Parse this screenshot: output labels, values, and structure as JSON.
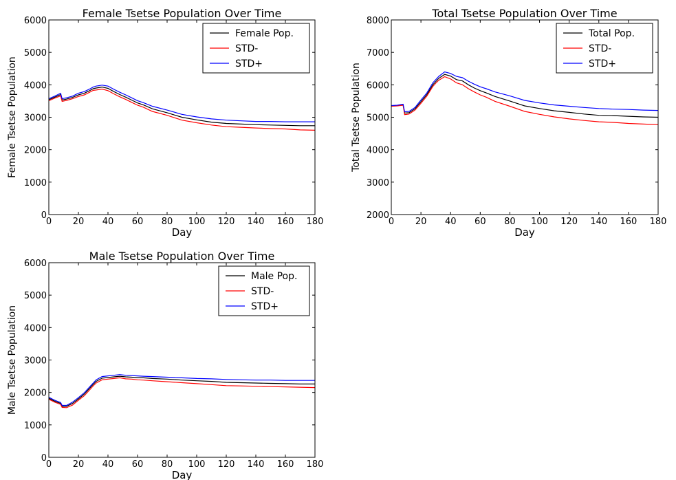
{
  "chart_data": [
    {
      "type": "line",
      "title": "Female Tsetse Population Over Time",
      "xlabel": "Day",
      "ylabel": "Female Tsetse Population",
      "xlim": [
        0,
        180
      ],
      "ylim": [
        0,
        6000
      ],
      "xticks": [
        0,
        20,
        40,
        60,
        80,
        100,
        120,
        140,
        160,
        180
      ],
      "yticks": [
        0,
        1000,
        2000,
        3000,
        4000,
        5000,
        6000
      ],
      "legend": "top-right",
      "grid": false,
      "x": [
        0,
        4,
        8,
        9,
        12,
        16,
        20,
        24,
        28,
        30,
        32,
        36,
        40,
        44,
        48,
        52,
        56,
        60,
        64,
        70,
        80,
        90,
        100,
        110,
        120,
        130,
        140,
        150,
        160,
        170,
        180
      ],
      "series": [
        {
          "name": "Female Pop.",
          "color": "#000000",
          "values": [
            3540,
            3620,
            3700,
            3530,
            3560,
            3610,
            3690,
            3740,
            3830,
            3880,
            3900,
            3930,
            3890,
            3790,
            3700,
            3620,
            3530,
            3440,
            3380,
            3260,
            3140,
            3000,
            2920,
            2850,
            2810,
            2790,
            2770,
            2760,
            2750,
            2740,
            2740
          ]
        },
        {
          "name": "STD-",
          "color": "#ff0000",
          "values": [
            3510,
            3590,
            3660,
            3490,
            3520,
            3570,
            3640,
            3690,
            3780,
            3830,
            3840,
            3870,
            3820,
            3720,
            3630,
            3550,
            3460,
            3370,
            3310,
            3180,
            3060,
            2910,
            2830,
            2760,
            2710,
            2690,
            2670,
            2650,
            2640,
            2610,
            2600
          ]
        },
        {
          "name": "STD+",
          "color": "#0000ff",
          "values": [
            3570,
            3650,
            3740,
            3570,
            3600,
            3650,
            3740,
            3790,
            3880,
            3930,
            3960,
            3990,
            3960,
            3860,
            3770,
            3690,
            3600,
            3510,
            3450,
            3340,
            3220,
            3090,
            3010,
            2950,
            2910,
            2890,
            2870,
            2870,
            2860,
            2860,
            2860
          ]
        }
      ]
    },
    {
      "type": "line",
      "title": "Total Tsetse Population Over Time",
      "xlabel": "Day",
      "ylabel": "Total Tsetse Population",
      "xlim": [
        0,
        180
      ],
      "ylim": [
        2000,
        8000
      ],
      "xticks": [
        0,
        20,
        40,
        60,
        80,
        100,
        120,
        140,
        160,
        180
      ],
      "yticks": [
        2000,
        3000,
        4000,
        5000,
        6000,
        7000,
        8000
      ],
      "legend": "top-right",
      "grid": false,
      "x": [
        0,
        4,
        8,
        9,
        12,
        16,
        20,
        24,
        28,
        30,
        32,
        36,
        40,
        44,
        48,
        52,
        56,
        60,
        64,
        70,
        80,
        90,
        100,
        110,
        120,
        130,
        140,
        150,
        160,
        170,
        180
      ],
      "series": [
        {
          "name": "Total Pop.",
          "color": "#000000",
          "values": [
            5350,
            5360,
            5380,
            5130,
            5140,
            5260,
            5480,
            5700,
            6000,
            6100,
            6200,
            6320,
            6270,
            6160,
            6120,
            6000,
            5900,
            5820,
            5750,
            5640,
            5500,
            5350,
            5270,
            5200,
            5150,
            5100,
            5060,
            5050,
            5030,
            5010,
            5000
          ]
        },
        {
          "name": "STD-",
          "color": "#ff0000",
          "values": [
            5340,
            5350,
            5370,
            5080,
            5100,
            5220,
            5430,
            5650,
            5950,
            6050,
            6140,
            6250,
            6180,
            6060,
            6000,
            5880,
            5780,
            5690,
            5620,
            5490,
            5340,
            5180,
            5090,
            5010,
            4950,
            4900,
            4860,
            4840,
            4810,
            4790,
            4770
          ]
        },
        {
          "name": "STD+",
          "color": "#0000ff",
          "values": [
            5360,
            5370,
            5400,
            5170,
            5180,
            5300,
            5530,
            5750,
            6060,
            6160,
            6260,
            6400,
            6350,
            6260,
            6220,
            6110,
            6020,
            5940,
            5880,
            5780,
            5660,
            5520,
            5440,
            5380,
            5340,
            5300,
            5270,
            5250,
            5240,
            5220,
            5210
          ]
        }
      ]
    },
    {
      "type": "line",
      "title": "Male Tsetse Population Over Time",
      "xlabel": "Day",
      "ylabel": "Male Tsetse Population",
      "xlim": [
        0,
        180
      ],
      "ylim": [
        0,
        6000
      ],
      "xticks": [
        0,
        20,
        40,
        60,
        80,
        100,
        120,
        140,
        160,
        180
      ],
      "yticks": [
        0,
        1000,
        2000,
        3000,
        4000,
        5000,
        6000
      ],
      "legend": "top-right",
      "grid": false,
      "x": [
        0,
        4,
        8,
        9,
        12,
        16,
        20,
        24,
        28,
        30,
        32,
        36,
        40,
        44,
        48,
        52,
        56,
        60,
        64,
        70,
        80,
        90,
        100,
        110,
        120,
        130,
        140,
        150,
        160,
        170,
        180
      ],
      "series": [
        {
          "name": "Male Pop.",
          "color": "#000000",
          "values": [
            1820,
            1730,
            1660,
            1570,
            1570,
            1660,
            1800,
            1950,
            2150,
            2250,
            2340,
            2440,
            2460,
            2480,
            2500,
            2480,
            2470,
            2450,
            2450,
            2430,
            2410,
            2380,
            2360,
            2340,
            2310,
            2300,
            2290,
            2280,
            2270,
            2260,
            2260
          ]
        },
        {
          "name": "STD-",
          "color": "#ff0000",
          "values": [
            1790,
            1700,
            1630,
            1540,
            1530,
            1610,
            1760,
            1900,
            2100,
            2200,
            2290,
            2390,
            2410,
            2430,
            2450,
            2420,
            2410,
            2390,
            2380,
            2360,
            2330,
            2300,
            2270,
            2240,
            2210,
            2200,
            2190,
            2180,
            2170,
            2160,
            2150
          ]
        },
        {
          "name": "STD+",
          "color": "#0000ff",
          "values": [
            1850,
            1760,
            1690,
            1600,
            1600,
            1700,
            1840,
            1990,
            2190,
            2290,
            2390,
            2490,
            2510,
            2530,
            2550,
            2530,
            2520,
            2510,
            2500,
            2490,
            2470,
            2450,
            2430,
            2420,
            2400,
            2390,
            2380,
            2380,
            2370,
            2370,
            2370
          ]
        }
      ]
    }
  ]
}
